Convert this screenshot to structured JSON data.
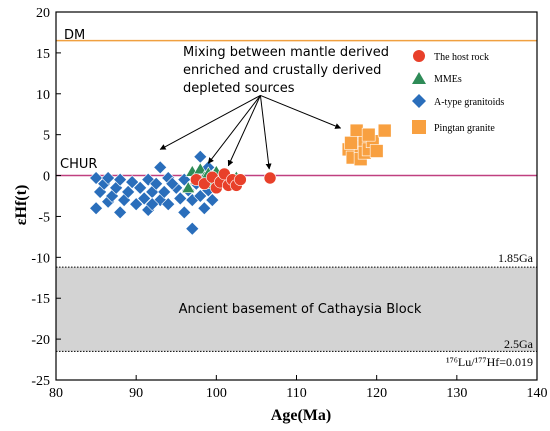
{
  "chart_data": {
    "type": "scatter",
    "xlabel": "Age(Ma)",
    "ylabel": "εHf(t)",
    "xlim": [
      80,
      140
    ],
    "ylim": [
      -25,
      20
    ],
    "xticks": [
      "80",
      "90",
      "100",
      "110",
      "120",
      "130",
      "140"
    ],
    "yticks": [
      "-25",
      "-20",
      "-15",
      "-10",
      "-5",
      "0",
      "5",
      "10",
      "15",
      "20"
    ],
    "grid": false,
    "legend_position": "top-right",
    "reference_lines": [
      {
        "label": "DM",
        "y": 16.5,
        "color": "#F0A040"
      },
      {
        "label": "CHUR",
        "y": 0,
        "color": "#C04080"
      }
    ],
    "annotations": {
      "mixing": [
        "Mixing between mantle derived",
        "enriched and crustally derived",
        "depleted sources"
      ],
      "basement": "Ancient basement of  Cathaysia Block",
      "line_top": "1.85Ga",
      "line_bottom": "2.5Ga",
      "lu_hf": "¹⁷⁶Lu/¹⁷⁷Hf=0.019"
    },
    "basement_range": [
      -21.5,
      -11.2
    ],
    "series": [
      {
        "name": "The host rock",
        "marker": "circle",
        "color": "#E8402A",
        "points": [
          [
            97.5,
            -0.5
          ],
          [
            98.5,
            -1.0
          ],
          [
            99.5,
            -0.2
          ],
          [
            100,
            -1.5
          ],
          [
            100.5,
            -0.8
          ],
          [
            101,
            0.2
          ],
          [
            101.5,
            -1.2
          ],
          [
            102,
            -0.5
          ],
          [
            102.5,
            -1.2
          ],
          [
            103,
            -0.5
          ],
          [
            106.7,
            -0.3
          ]
        ]
      },
      {
        "name": "MMEs",
        "marker": "triangle",
        "color": "#2E8B57",
        "points": [
          [
            96.5,
            -1.5
          ],
          [
            97,
            0.5
          ],
          [
            97.5,
            -0.5
          ],
          [
            98,
            0.8
          ],
          [
            98.5,
            -0.2
          ],
          [
            99,
            0.3
          ],
          [
            99.5,
            -1.0
          ],
          [
            100,
            0.5
          ],
          [
            100.5,
            -0.5
          ],
          [
            101,
            0.2
          ],
          [
            101.5,
            -0.2
          ],
          [
            102.5,
            -0.2
          ]
        ]
      },
      {
        "name": "A-type granitoids",
        "marker": "diamond",
        "color": "#2A6EBB",
        "points": [
          [
            85,
            -0.3
          ],
          [
            85.5,
            -2.0
          ],
          [
            85,
            -4.0
          ],
          [
            86,
            -1.0
          ],
          [
            86.5,
            -3.2
          ],
          [
            87,
            -2.5
          ],
          [
            87.5,
            -1.5
          ],
          [
            88,
            -0.5
          ],
          [
            88.5,
            -3.0
          ],
          [
            89,
            -2.0
          ],
          [
            89.5,
            -0.8
          ],
          [
            90,
            -3.5
          ],
          [
            90.5,
            -1.5
          ],
          [
            91,
            -2.8
          ],
          [
            91.5,
            -0.5
          ],
          [
            91.5,
            -4.2
          ],
          [
            92,
            -2.0
          ],
          [
            92.5,
            -1.0
          ],
          [
            93,
            -3.0
          ],
          [
            93,
            1.0
          ],
          [
            93.5,
            -2.0
          ],
          [
            94,
            -0.3
          ],
          [
            94,
            -3.5
          ],
          [
            95,
            -1.5
          ],
          [
            95.5,
            -2.8
          ],
          [
            96,
            -0.5
          ],
          [
            96,
            -4.5
          ],
          [
            96.5,
            -1.8
          ],
          [
            97,
            -6.5
          ],
          [
            97,
            -3.0
          ],
          [
            97.5,
            -1.0
          ],
          [
            98,
            2.3
          ],
          [
            98,
            -2.5
          ],
          [
            98.5,
            -0.5
          ],
          [
            98.5,
            -4.0
          ],
          [
            99,
            -1.8
          ],
          [
            99,
            1.0
          ],
          [
            99.5,
            -3.0
          ],
          [
            88,
            -4.5
          ],
          [
            86.5,
            -0.3
          ],
          [
            94.5,
            -1.0
          ],
          [
            92,
            -3.5
          ]
        ]
      },
      {
        "name": "Pingtan granite",
        "marker": "square",
        "color": "#F8A040",
        "points": [
          [
            116.5,
            3.2
          ],
          [
            117,
            2.2
          ],
          [
            117.5,
            4.5
          ],
          [
            117.5,
            5.5
          ],
          [
            118,
            3.5
          ],
          [
            118,
            2.0
          ],
          [
            118.5,
            4.0
          ],
          [
            118.5,
            2.8
          ],
          [
            119,
            3.2
          ],
          [
            119.5,
            4.2
          ],
          [
            120,
            3.0
          ],
          [
            121,
            5.5
          ],
          [
            116.8,
            4.0
          ],
          [
            119,
            5.0
          ]
        ]
      }
    ]
  }
}
